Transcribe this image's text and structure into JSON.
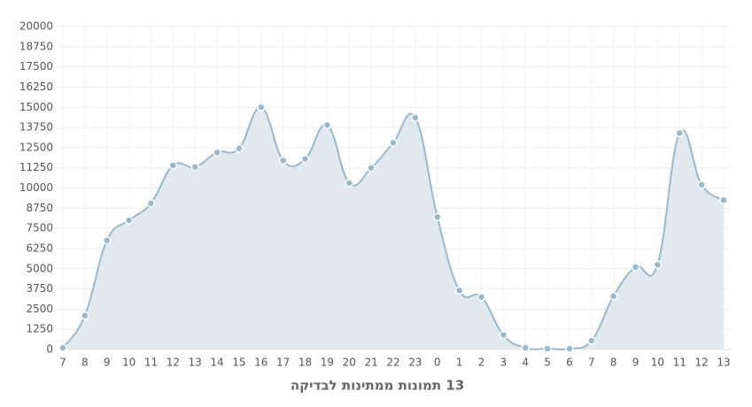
{
  "chart_data": {
    "type": "area",
    "title": "13 תמונות ממתינות לבדיקה",
    "categories": [
      "7",
      "8",
      "9",
      "10",
      "11",
      "12",
      "13",
      "14",
      "15",
      "16",
      "17",
      "18",
      "19",
      "20",
      "21",
      "22",
      "23",
      "0",
      "1",
      "2",
      "3",
      "4",
      "5",
      "6",
      "7",
      "8",
      "9",
      "10",
      "11",
      "12",
      "13"
    ],
    "values": [
      100,
      2100,
      6750,
      8000,
      9050,
      11400,
      11300,
      12200,
      12450,
      15000,
      11700,
      11800,
      13900,
      10300,
      11250,
      12800,
      14350,
      8200,
      3650,
      3250,
      900,
      100,
      50,
      50,
      550,
      3300,
      5100,
      5250,
      13400,
      10200,
      9250
    ],
    "color": "#98b9cc",
    "fill_color": "#e2e9ee",
    "ylim": [
      0,
      20000
    ],
    "yticks": [
      0,
      1250,
      2500,
      3750,
      5000,
      6250,
      7500,
      8750,
      10000,
      11250,
      12500,
      13750,
      15000,
      16250,
      17500,
      18750,
      20000
    ],
    "grid": true
  }
}
